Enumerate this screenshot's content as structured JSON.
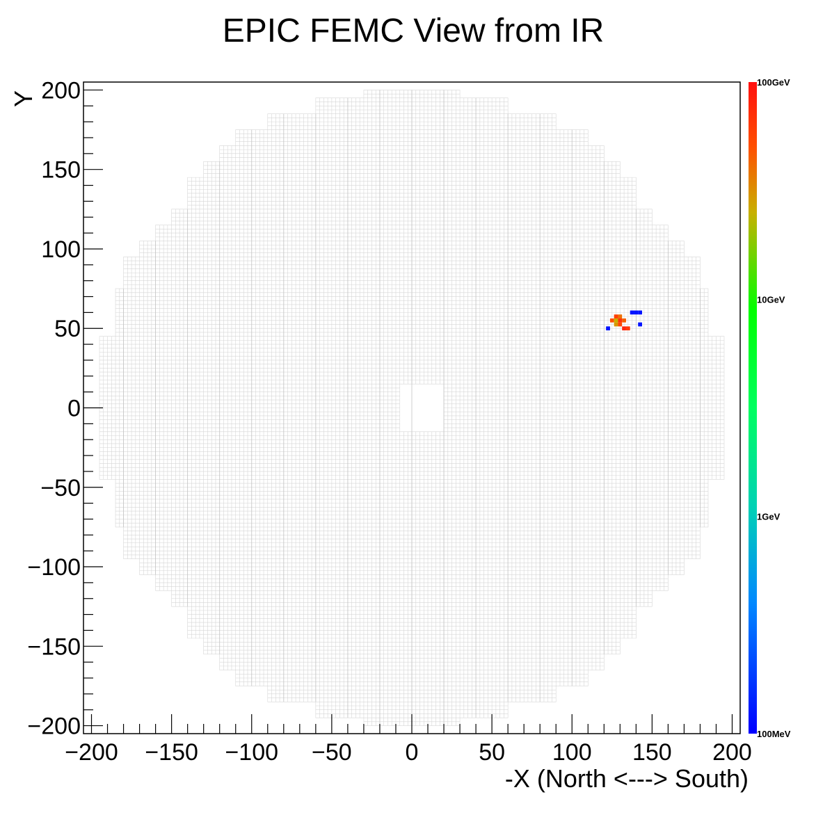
{
  "chart_data": {
    "type": "heatmap",
    "title": "EPIC FEMC View from IR",
    "xlabel": "-X (North <---> South)",
    "ylabel": "Y",
    "xlim": [
      -205,
      205
    ],
    "ylim": [
      -205,
      205
    ],
    "x_ticks": [
      -200,
      -150,
      -100,
      -50,
      0,
      50,
      100,
      150,
      200
    ],
    "y_ticks": [
      -200,
      -150,
      -100,
      -50,
      0,
      50,
      100,
      150,
      200
    ],
    "x_tick_labels": [
      "−200",
      "−150",
      "−100",
      "−50",
      "0",
      "50",
      "100",
      "150",
      "200"
    ],
    "y_tick_labels": [
      "−200",
      "−150",
      "−100",
      "−50",
      "0",
      "50",
      "100",
      "150",
      "200"
    ],
    "colorbar": {
      "scale": "log",
      "range_GeV": [
        0.1,
        100
      ],
      "ticks_GeV": [
        0.1,
        1,
        10,
        100
      ],
      "tick_labels": [
        "100MeV",
        "1GeV",
        "10GeV",
        "100GeV"
      ]
    },
    "detector": {
      "cell_size": 2.5,
      "module_size": 20,
      "inner_hole": {
        "x": [
          -7.5,
          20
        ],
        "y": [
          -15,
          15
        ]
      },
      "color_empty": "#d6d6d6",
      "row_extents": [
        {
          "y": [
            195,
            200
          ],
          "x": [
            -30,
            30
          ]
        },
        {
          "y": [
            185,
            195
          ],
          "x": [
            -60,
            60
          ]
        },
        {
          "y": [
            175,
            185
          ],
          "x": [
            -90,
            90
          ]
        },
        {
          "y": [
            165,
            175
          ],
          "x": [
            -110,
            110
          ]
        },
        {
          "y": [
            155,
            165
          ],
          "x": [
            -120,
            120
          ]
        },
        {
          "y": [
            145,
            155
          ],
          "x": [
            -130,
            130
          ]
        },
        {
          "y": [
            125,
            145
          ],
          "x": [
            -140,
            140
          ]
        },
        {
          "y": [
            115,
            125
          ],
          "x": [
            -150,
            150
          ]
        },
        {
          "y": [
            105,
            115
          ],
          "x": [
            -160,
            160
          ]
        },
        {
          "y": [
            95,
            105
          ],
          "x": [
            -170,
            170
          ]
        },
        {
          "y": [
            75,
            95
          ],
          "x": [
            -180,
            180
          ]
        },
        {
          "y": [
            45,
            75
          ],
          "x": [
            -185,
            185
          ]
        },
        {
          "y": [
            -45,
            45
          ],
          "x": [
            -195,
            195
          ]
        },
        {
          "y": [
            -75,
            -45
          ],
          "x": [
            -185,
            185
          ]
        },
        {
          "y": [
            -95,
            -75
          ],
          "x": [
            -180,
            180
          ]
        },
        {
          "y": [
            -105,
            -95
          ],
          "x": [
            -170,
            170
          ]
        },
        {
          "y": [
            -115,
            -105
          ],
          "x": [
            -160,
            160
          ]
        },
        {
          "y": [
            -125,
            -115
          ],
          "x": [
            -150,
            150
          ]
        },
        {
          "y": [
            -145,
            -125
          ],
          "x": [
            -140,
            140
          ]
        },
        {
          "y": [
            -155,
            -145
          ],
          "x": [
            -130,
            130
          ]
        },
        {
          "y": [
            -165,
            -155
          ],
          "x": [
            -120,
            120
          ]
        },
        {
          "y": [
            -175,
            -165
          ],
          "x": [
            -110,
            110
          ]
        },
        {
          "y": [
            -185,
            -175
          ],
          "x": [
            -90,
            90
          ]
        },
        {
          "y": [
            -195,
            -185
          ],
          "x": [
            -60,
            60
          ]
        },
        {
          "y": [
            -200,
            -195
          ],
          "x": [
            -30,
            30
          ]
        }
      ]
    },
    "hits": [
      {
        "x": 127.5,
        "y": 57.5,
        "e": 60
      },
      {
        "x": 130,
        "y": 57.5,
        "e": 40
      },
      {
        "x": 125,
        "y": 55,
        "e": 50
      },
      {
        "x": 127.5,
        "y": 55,
        "e": 25
      },
      {
        "x": 130,
        "y": 55,
        "e": 70
      },
      {
        "x": 132.5,
        "y": 55,
        "e": 45
      },
      {
        "x": 127.5,
        "y": 52.5,
        "e": 30
      },
      {
        "x": 130,
        "y": 52.5,
        "e": 55
      },
      {
        "x": 132.5,
        "y": 50,
        "e": 80
      },
      {
        "x": 135,
        "y": 50,
        "e": 65
      },
      {
        "x": 137.5,
        "y": 60,
        "e": 0.12
      },
      {
        "x": 140,
        "y": 60,
        "e": 0.12
      },
      {
        "x": 142.5,
        "y": 60,
        "e": 0.12
      },
      {
        "x": 142.5,
        "y": 52.5,
        "e": 0.12
      },
      {
        "x": 122.5,
        "y": 50,
        "e": 0.12
      }
    ]
  }
}
